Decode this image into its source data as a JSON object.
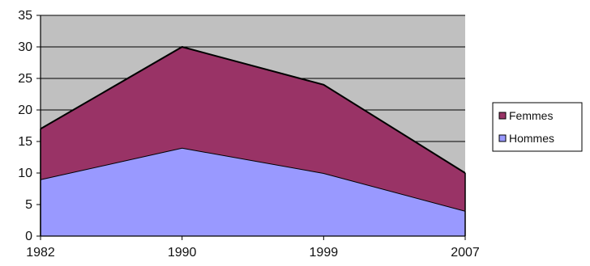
{
  "chart_data": {
    "type": "area",
    "stacked": true,
    "categories": [
      "1982",
      "1990",
      "1999",
      "2007"
    ],
    "series": [
      {
        "name": "Hommes",
        "values": [
          9,
          14,
          10,
          4
        ],
        "color": "#9999ff"
      },
      {
        "name": "Femmes",
        "values": [
          8,
          16,
          14,
          6
        ],
        "color": "#993366"
      }
    ],
    "legend_order": [
      "Femmes",
      "Hommes"
    ],
    "ylim": [
      0,
      35
    ],
    "yticks": [
      "0",
      "5",
      "10",
      "15",
      "20",
      "25",
      "30",
      "35"
    ],
    "grid": true,
    "legend_position": "right",
    "plot_background": "#c0c0c0",
    "title": "",
    "xlabel": "",
    "ylabel": ""
  }
}
